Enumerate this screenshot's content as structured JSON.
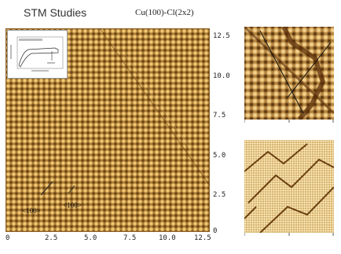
{
  "title": "STM Studies",
  "subtitle": "Cu(100)-Cl(2x2)",
  "main_image": {
    "x_ticks": [
      "0",
      "2.5",
      "5.0",
      "7.5",
      "10.0",
      "12.5"
    ],
    "y_ticks": [
      "12.5",
      "10.0",
      "7.5",
      "5.0",
      "2.5",
      "0"
    ],
    "direction_labels": [
      "<100>",
      "<100>"
    ]
  },
  "colors": {
    "stm_base": "#aa7b35",
    "stm_bright": "#f1c873",
    "stm_dark": "#6b4413",
    "step_edge": "#5b2f0a"
  }
}
